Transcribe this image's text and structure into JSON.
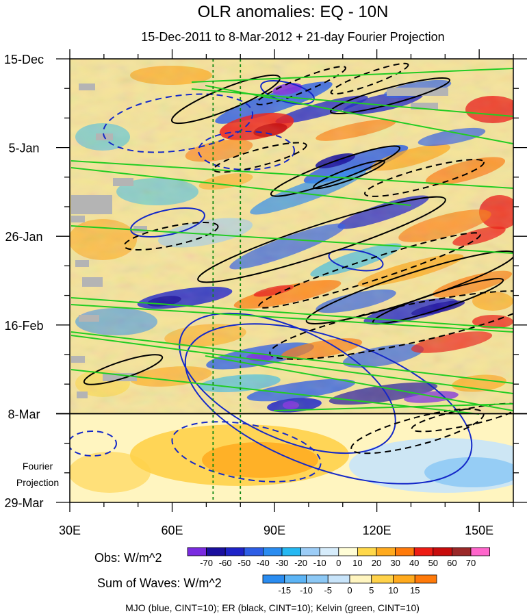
{
  "chart_data": {
    "type": "heatmap",
    "title": "OLR anomalies: EQ - 10N",
    "subtitle": "15-Dec-2011 to 8-Mar-2012 + 21-day Fourier Projection",
    "x_axis": {
      "range": [
        30,
        160
      ],
      "ticks": [
        {
          "value": 30,
          "label": "30E"
        },
        {
          "value": 60,
          "label": "60E"
        },
        {
          "value": 90,
          "label": "90E"
        },
        {
          "value": 120,
          "label": "120E"
        },
        {
          "value": 150,
          "label": "150E"
        }
      ],
      "minor_step": 10
    },
    "y_axis": {
      "unit": "days since 15-Dec-2011",
      "range": [
        0,
        105
      ],
      "ticks": [
        {
          "value": 0,
          "label": "15-Dec"
        },
        {
          "value": 21,
          "label": "5-Jan"
        },
        {
          "value": 42,
          "label": "26-Jan"
        },
        {
          "value": 63,
          "label": "16-Feb"
        },
        {
          "value": 84,
          "label": "8-Mar"
        },
        {
          "value": 105,
          "label": "29-Mar"
        }
      ],
      "minor_step": 7
    },
    "projection_label": [
      "Fourier",
      "Projection"
    ],
    "projection_start_day": 84,
    "reference_longitudes": [
      72,
      80
    ],
    "obs_colorbar": {
      "title": "Obs: W/m^2",
      "labels": [
        "-70",
        "-60",
        "-50",
        "-40",
        "-30",
        "-20",
        "-10",
        "0",
        "10",
        "20",
        "30",
        "40",
        "50",
        "60",
        "70"
      ],
      "colors": [
        "#7a2be0",
        "#1a0f9e",
        "#1e23c8",
        "#2d5ee6",
        "#2a8cf0",
        "#25b8f2",
        "#9ccdf7",
        "#d6ecfb",
        "#fffdd6",
        "#ffd84a",
        "#ffaa1e",
        "#ff7a0a",
        "#ee1c14",
        "#c80c0c",
        "#9a2828",
        "#ff66cc"
      ]
    },
    "waves_colorbar": {
      "title": "Sum of Waves: W/m^2",
      "labels": [
        "-15",
        "-10",
        "-5",
        "0",
        "5",
        "10",
        "15"
      ],
      "colors": [
        "#2a8cf0",
        "#5cb4f5",
        "#8cc8f5",
        "#c8e4fa",
        "#fff5c0",
        "#ffd24a",
        "#ffaa1e",
        "#ff7a0a"
      ]
    },
    "legend_note": "MJO (blue, CINT=10); ER (black, CINT=10); Kelvin (green, CINT=10)"
  }
}
